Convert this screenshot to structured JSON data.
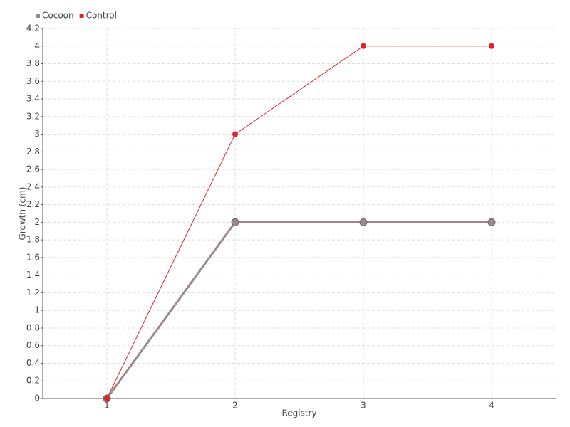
{
  "chart_data": {
    "type": "line",
    "x_label": "Registry",
    "y_label": "Growth (cm)",
    "categories": [
      "1",
      "2",
      "3",
      "4"
    ],
    "series": [
      {
        "name": "Cocoon",
        "color": "#9a8a8e",
        "values": [
          0,
          2,
          2,
          2
        ]
      },
      {
        "name": "Control",
        "color": "#e0202a",
        "values": [
          0,
          3,
          4,
          4
        ]
      }
    ],
    "ylim": [
      0,
      4.2
    ],
    "yticks": [
      0,
      0.2,
      0.4,
      0.6,
      0.8,
      1,
      1.2,
      1.4,
      1.6,
      1.8,
      2,
      2.2,
      2.4,
      2.6,
      2.8,
      3,
      3.2,
      3.4,
      3.6,
      3.8,
      4,
      4.2
    ],
    "grid": true
  }
}
